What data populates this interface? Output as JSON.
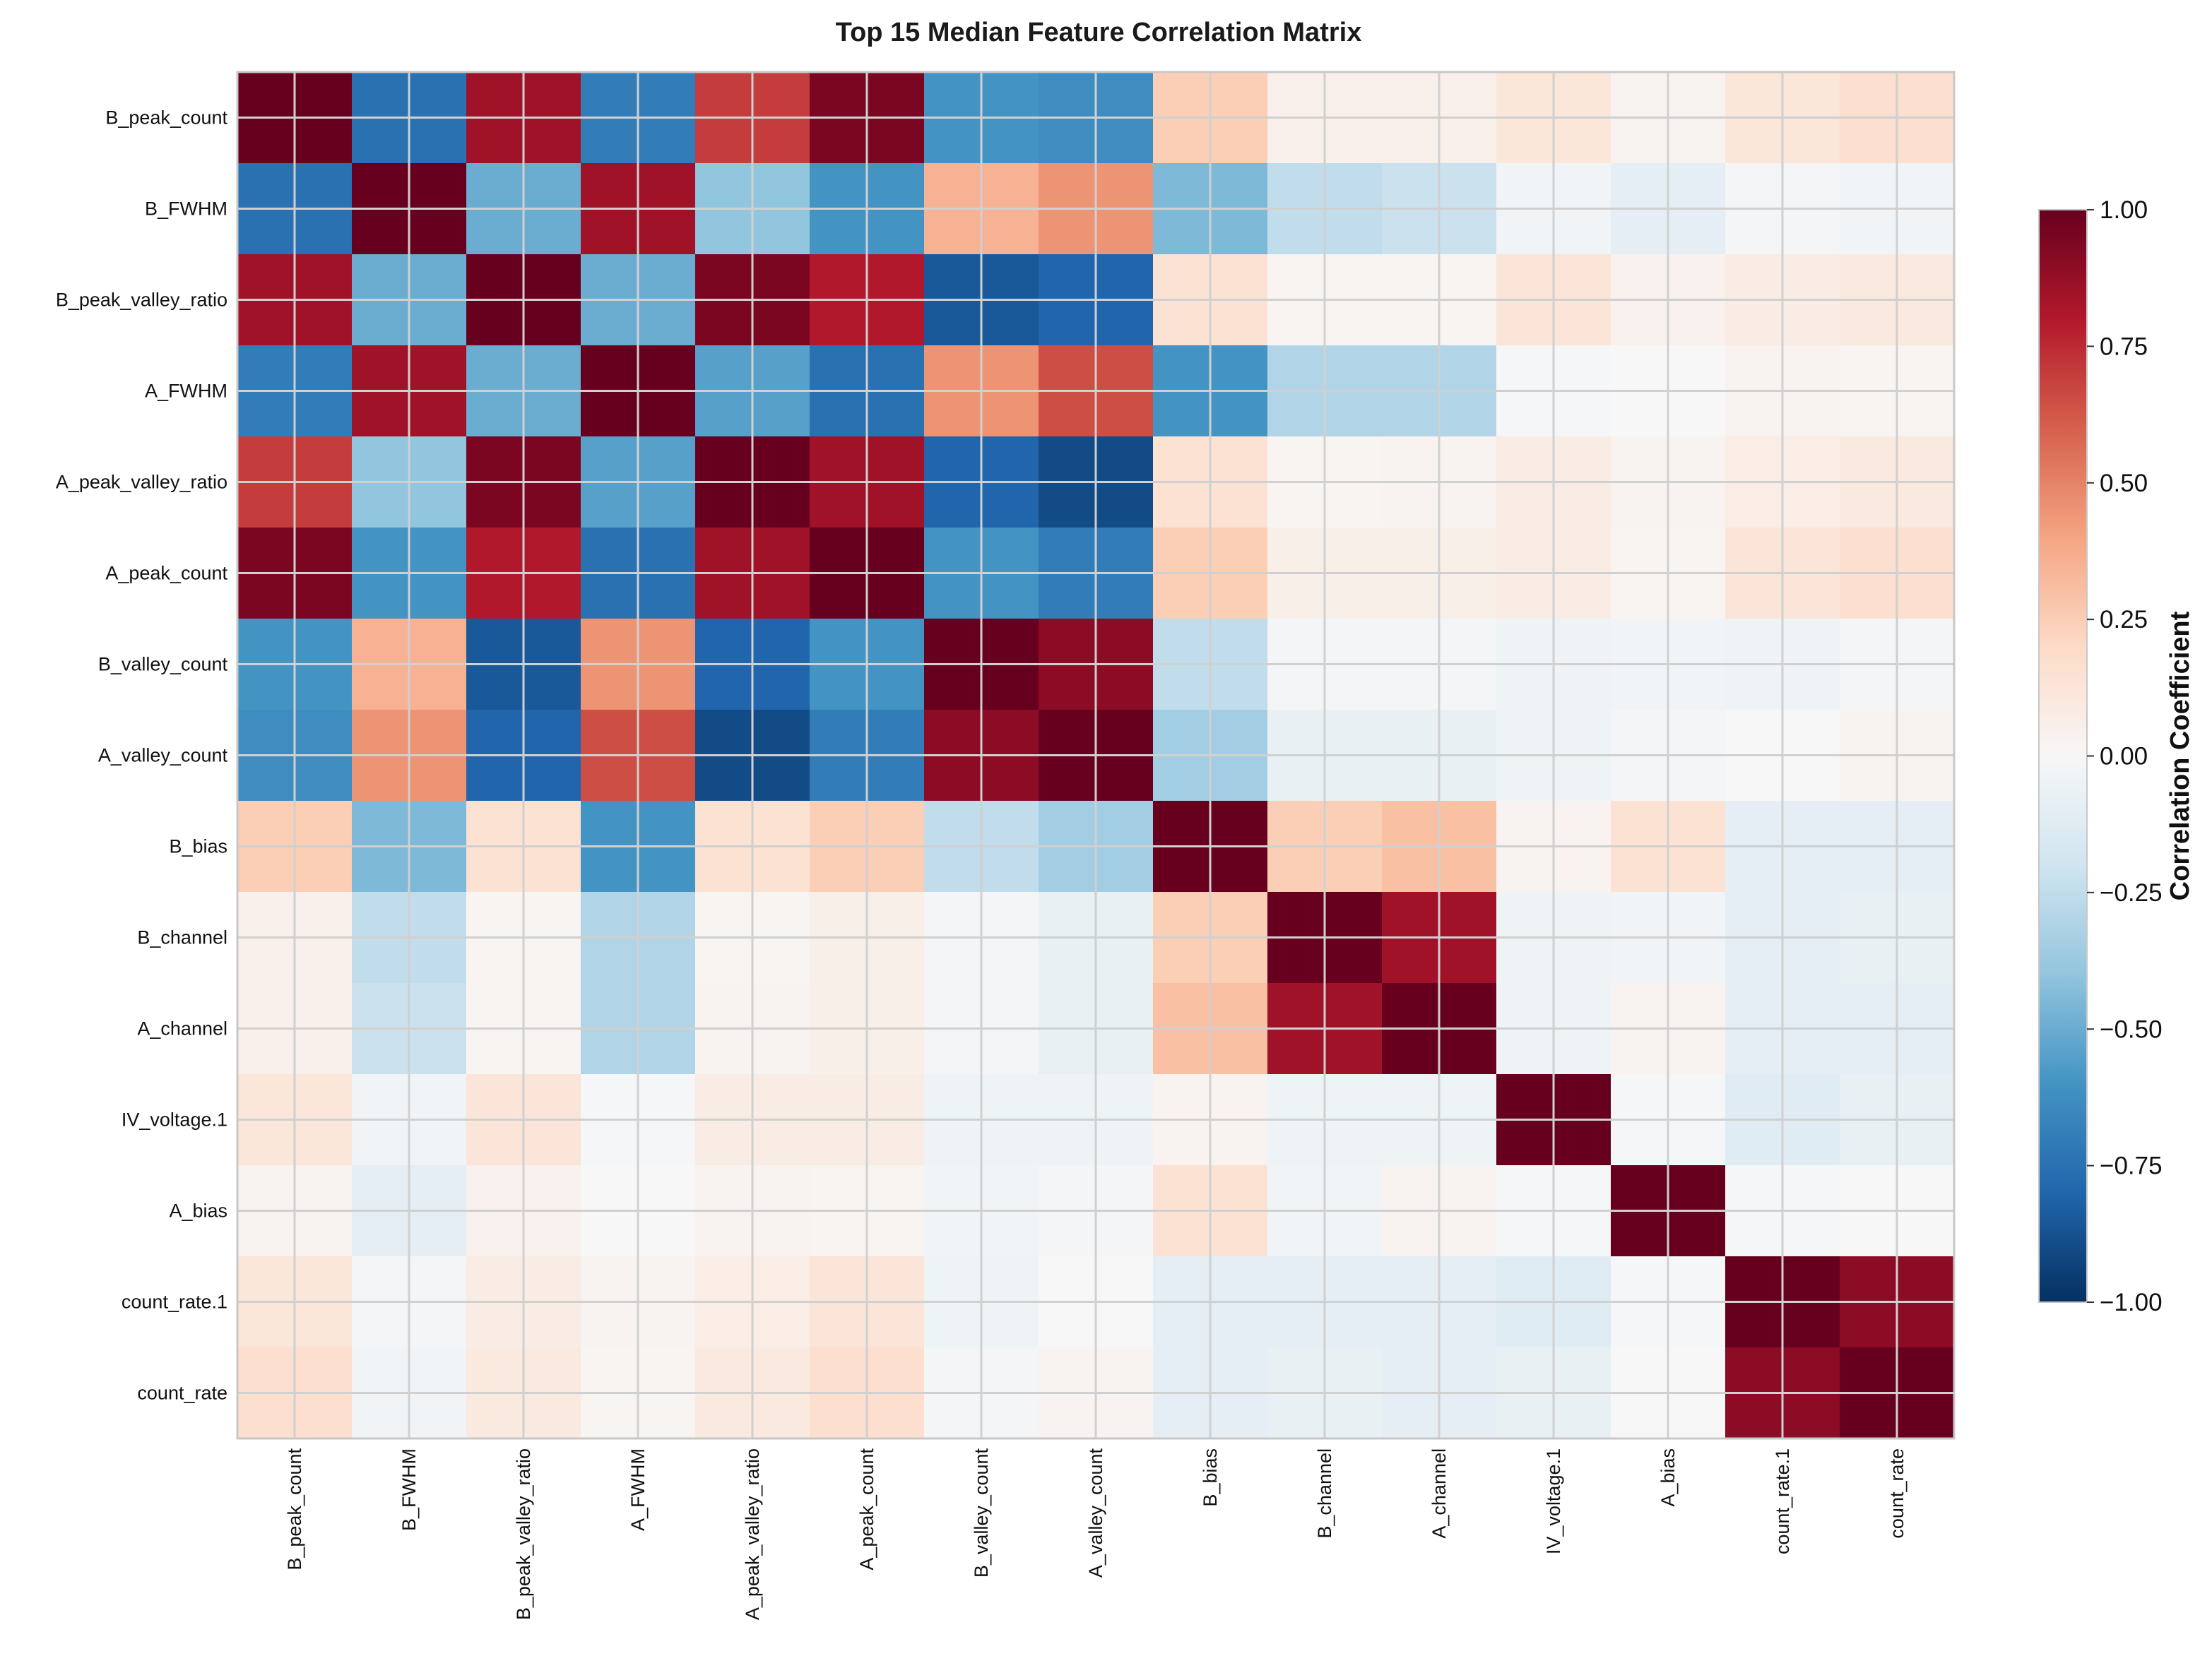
{
  "chart_data": {
    "type": "heatmap",
    "title": "Top 15 Median Feature Correlation Matrix",
    "row_labels": [
      "B_peak_count",
      "B_FWHM",
      "B_peak_valley_ratio",
      "A_FWHM",
      "A_peak_valley_ratio",
      "A_peak_count",
      "B_valley_count",
      "A_valley_count",
      "B_bias",
      "B_channel",
      "A_channel",
      "IV_voltage.1",
      "A_bias",
      "count_rate.1",
      "count_rate"
    ],
    "col_labels": [
      "B_peak_count",
      "B_FWHM",
      "B_peak_valley_ratio",
      "A_FWHM",
      "A_peak_valley_ratio",
      "A_peak_count",
      "B_valley_count",
      "A_valley_count",
      "B_bias",
      "B_channel",
      "A_channel",
      "IV_voltage.1",
      "A_bias",
      "count_rate.1",
      "count_rate"
    ],
    "values": [
      [
        1.0,
        -0.75,
        0.85,
        -0.7,
        0.7,
        0.95,
        -0.6,
        -0.63,
        0.25,
        0.05,
        0.05,
        0.12,
        0.03,
        0.12,
        0.17
      ],
      [
        -0.75,
        1.0,
        -0.5,
        0.85,
        -0.4,
        -0.6,
        0.35,
        0.45,
        -0.45,
        -0.25,
        -0.22,
        -0.03,
        -0.1,
        -0.02,
        -0.03
      ],
      [
        0.85,
        -0.5,
        1.0,
        -0.5,
        0.95,
        0.8,
        -0.85,
        -0.8,
        0.15,
        0.02,
        0.02,
        0.13,
        0.04,
        0.08,
        0.1
      ],
      [
        -0.7,
        0.85,
        -0.5,
        1.0,
        -0.55,
        -0.75,
        0.45,
        0.65,
        -0.6,
        -0.3,
        -0.3,
        -0.01,
        0.0,
        0.03,
        0.02
      ],
      [
        0.7,
        -0.4,
        0.95,
        -0.55,
        1.0,
        0.85,
        -0.8,
        -0.9,
        0.15,
        0.02,
        0.03,
        0.08,
        0.03,
        0.07,
        0.1
      ],
      [
        0.95,
        -0.6,
        0.8,
        -0.75,
        0.85,
        1.0,
        -0.6,
        -0.7,
        0.25,
        0.06,
        0.06,
        0.08,
        0.02,
        0.13,
        0.17
      ],
      [
        -0.6,
        0.35,
        -0.85,
        0.45,
        -0.8,
        -0.6,
        1.0,
        0.9,
        -0.25,
        -0.02,
        -0.02,
        -0.05,
        -0.03,
        -0.05,
        -0.02
      ],
      [
        -0.63,
        0.45,
        -0.8,
        0.65,
        -0.9,
        -0.7,
        0.9,
        1.0,
        -0.35,
        -0.08,
        -0.08,
        -0.05,
        -0.02,
        0.0,
        0.03
      ],
      [
        0.25,
        -0.45,
        0.15,
        -0.6,
        0.15,
        0.25,
        -0.25,
        -0.35,
        1.0,
        0.25,
        0.3,
        0.03,
        0.15,
        -0.1,
        -0.1
      ],
      [
        0.05,
        -0.25,
        0.02,
        -0.3,
        0.02,
        0.06,
        -0.02,
        -0.08,
        0.25,
        1.0,
        0.85,
        -0.05,
        -0.03,
        -0.1,
        -0.08
      ],
      [
        0.05,
        -0.22,
        0.02,
        -0.3,
        0.03,
        0.06,
        -0.02,
        -0.08,
        0.3,
        0.85,
        1.0,
        -0.05,
        0.03,
        -0.1,
        -0.1
      ],
      [
        0.12,
        -0.03,
        0.13,
        -0.01,
        0.08,
        0.08,
        -0.05,
        -0.05,
        0.03,
        -0.05,
        -0.05,
        1.0,
        -0.01,
        -0.12,
        -0.08
      ],
      [
        0.03,
        -0.1,
        0.04,
        0.0,
        0.03,
        0.02,
        -0.03,
        -0.02,
        0.15,
        -0.03,
        0.03,
        -0.01,
        1.0,
        -0.01,
        0.0
      ],
      [
        0.12,
        -0.02,
        0.08,
        0.03,
        0.07,
        0.13,
        -0.05,
        0.0,
        -0.1,
        -0.1,
        -0.1,
        -0.12,
        -0.01,
        1.0,
        0.9
      ],
      [
        0.17,
        -0.03,
        0.1,
        0.02,
        0.1,
        0.17,
        -0.02,
        0.03,
        -0.1,
        -0.08,
        -0.1,
        -0.08,
        0.0,
        0.9,
        1.0
      ]
    ],
    "vmin": -1.0,
    "vmax": 1.0,
    "colormap": "RdBu_r",
    "grid": true,
    "colorbar": {
      "label": "Correlation Coefficient",
      "ticks": [
        "1.00",
        "0.75",
        "0.50",
        "0.25",
        "0.00",
        "−0.25",
        "−0.50",
        "−0.75",
        "−1.00"
      ]
    }
  }
}
